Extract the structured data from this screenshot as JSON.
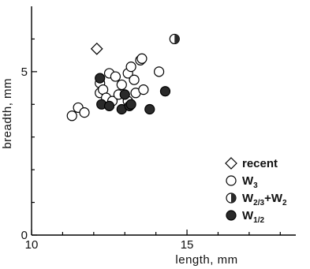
{
  "chart_data": {
    "type": "scatter",
    "xlabel": "length, mm",
    "ylabel": "breadth, mm",
    "xlim": [
      10,
      18.5
    ],
    "ylim": [
      0,
      7
    ],
    "x_ticks": [
      10,
      15
    ],
    "y_ticks": [
      0,
      5
    ],
    "x_minor_ticks": [
      11,
      12,
      13,
      14,
      16,
      17,
      18
    ],
    "y_minor_ticks": [
      1,
      2,
      3,
      4,
      6
    ],
    "grid": false,
    "legend_position": "bottom-right",
    "series": [
      {
        "name": "recent",
        "marker": "diamond",
        "points": [
          {
            "x": 12.1,
            "y": 5.7
          }
        ]
      },
      {
        "name": "W",
        "subscript": "3",
        "marker": "open-circle",
        "points": [
          {
            "x": 11.3,
            "y": 3.65
          },
          {
            "x": 11.5,
            "y": 3.9
          },
          {
            "x": 11.7,
            "y": 3.75
          },
          {
            "x": 12.2,
            "y": 4.65
          },
          {
            "x": 12.2,
            "y": 4.35
          },
          {
            "x": 12.3,
            "y": 4.45
          },
          {
            "x": 12.4,
            "y": 4.2
          },
          {
            "x": 12.5,
            "y": 4.95
          },
          {
            "x": 12.6,
            "y": 4.1
          },
          {
            "x": 12.7,
            "y": 4.85
          },
          {
            "x": 12.8,
            "y": 4.3
          },
          {
            "x": 12.9,
            "y": 4.6
          },
          {
            "x": 13.1,
            "y": 4.95
          },
          {
            "x": 13.1,
            "y": 4.1
          },
          {
            "x": 13.2,
            "y": 5.15
          },
          {
            "x": 13.3,
            "y": 4.75
          },
          {
            "x": 13.35,
            "y": 4.35
          },
          {
            "x": 13.5,
            "y": 5.35
          },
          {
            "x": 13.55,
            "y": 5.4
          },
          {
            "x": 13.6,
            "y": 4.45
          },
          {
            "x": 14.1,
            "y": 5.0
          }
        ]
      },
      {
        "name": "W",
        "subscript": "2/3",
        "name_suffix": "+W",
        "subscript_suffix": "2",
        "marker": "half-circle",
        "points": [
          {
            "x": 14.6,
            "y": 6.0
          }
        ]
      },
      {
        "name": "W",
        "subscript": "1/2",
        "marker": "filled-circle",
        "points": [
          {
            "x": 12.2,
            "y": 4.8
          },
          {
            "x": 12.25,
            "y": 4.0
          },
          {
            "x": 12.5,
            "y": 3.95
          },
          {
            "x": 12.9,
            "y": 3.85
          },
          {
            "x": 13.0,
            "y": 4.3
          },
          {
            "x": 13.15,
            "y": 3.95
          },
          {
            "x": 13.2,
            "y": 4.0
          },
          {
            "x": 13.8,
            "y": 3.85
          },
          {
            "x": 14.3,
            "y": 4.4
          }
        ]
      }
    ]
  }
}
